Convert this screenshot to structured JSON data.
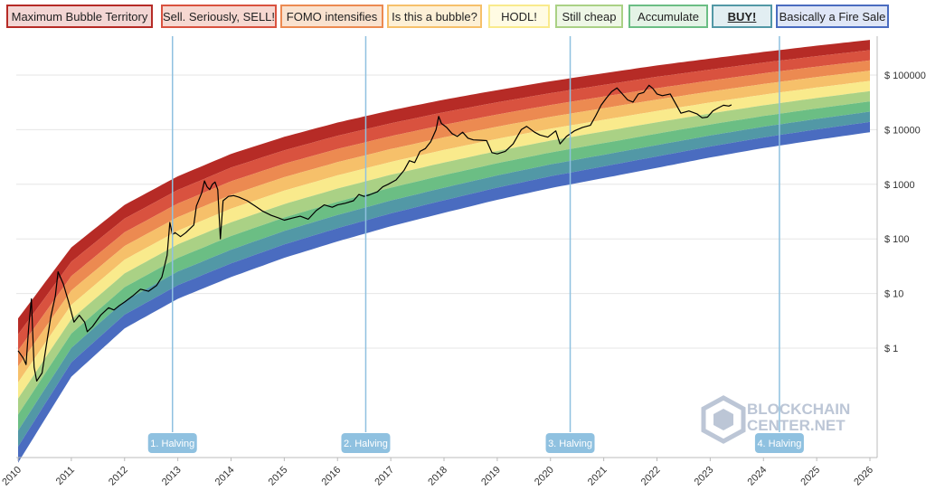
{
  "legend": [
    {
      "label": "Maximum Bubble Territory",
      "border": "#b62b26",
      "fill": "#f3d6d4"
    },
    {
      "label": "Sell. Seriously, SELL!",
      "border": "#d9523f",
      "fill": "#f6d8d1"
    },
    {
      "label": "FOMO intensifies",
      "border": "#ec8a51",
      "fill": "#f9e2cf"
    },
    {
      "label": "Is this a bubble?",
      "border": "#f6c06a",
      "fill": "#fdf0d6"
    },
    {
      "label": "HODL!",
      "border": "#f9ea8c",
      "fill": "#fffbe3"
    },
    {
      "label": "Still cheap",
      "border": "#aad185",
      "fill": "#eef7e6"
    },
    {
      "label": "Accumulate",
      "border": "#6bbe84",
      "fill": "#e4f3e6"
    },
    {
      "label": "BUY!",
      "border": "#5298a6",
      "fill": "#e2eef2",
      "bold": true
    },
    {
      "label": "Basically a Fire Sale",
      "border": "#4a6cc0",
      "fill": "#dfe6f6"
    }
  ],
  "chart_data": {
    "type": "line",
    "title": "",
    "y_scale": "log",
    "x_range": [
      2010,
      2026
    ],
    "y_ticks": [
      {
        "value": 1,
        "label": "$ 1"
      },
      {
        "value": 10,
        "label": "$ 10"
      },
      {
        "value": 100,
        "label": "$ 100"
      },
      {
        "value": 1000,
        "label": "$ 1000"
      },
      {
        "value": 10000,
        "label": "$ 10000"
      },
      {
        "value": 100000,
        "label": "$ 100000"
      }
    ],
    "x_ticks": [
      "2010",
      "2011",
      "2012",
      "2013",
      "2014",
      "2015",
      "2016",
      "2017",
      "2018",
      "2019",
      "2020",
      "2021",
      "2022",
      "2023",
      "2024",
      "2025",
      "2026"
    ],
    "band_colors": [
      "#b62b26",
      "#d9523f",
      "#ec8a51",
      "#f6c06a",
      "#f9ea8c",
      "#aad185",
      "#6bbe84",
      "#5298a6",
      "#4a6cc0"
    ],
    "bands_low": {
      "year": [
        2010,
        2011,
        2012,
        2013,
        2014,
        2015,
        2016,
        2017,
        2018,
        2019,
        2020,
        2021,
        2022,
        2023,
        2024,
        2025,
        2026
      ],
      "price": [
        0.008,
        0.3,
        2.3,
        8,
        20,
        45,
        90,
        170,
        300,
        520,
        850,
        1300,
        2000,
        3100,
        4600,
        6500,
        9000
      ]
    },
    "bands_high": {
      "year": [
        2010,
        2011,
        2012,
        2013,
        2014,
        2015,
        2016,
        2017,
        2018,
        2019,
        2020,
        2021,
        2022,
        2023,
        2024,
        2025,
        2026
      ],
      "price": [
        3.5,
        70,
        420,
        1400,
        3600,
        7400,
        13500,
        22500,
        35500,
        53000,
        77000,
        108000,
        150000,
        200000,
        265000,
        345000,
        440000
      ]
    },
    "series": [
      {
        "values": [
          [
            2010.0,
            0.9
          ],
          [
            2010.1,
            0.65
          ],
          [
            2010.15,
            0.5
          ],
          [
            2010.2,
            2.5
          ],
          [
            2010.25,
            8
          ],
          [
            2010.3,
            0.45
          ],
          [
            2010.35,
            0.25
          ],
          [
            2010.45,
            0.35
          ],
          [
            2010.55,
            1.5
          ],
          [
            2010.62,
            4
          ],
          [
            2010.7,
            9
          ],
          [
            2010.75,
            25
          ],
          [
            2010.85,
            15
          ],
          [
            2010.95,
            7
          ],
          [
            2011.05,
            3
          ],
          [
            2011.15,
            4
          ],
          [
            2011.25,
            3
          ],
          [
            2011.3,
            2
          ],
          [
            2011.4,
            2.5
          ],
          [
            2011.55,
            4
          ],
          [
            2011.7,
            5.5
          ],
          [
            2011.8,
            5
          ],
          [
            2011.9,
            6
          ],
          [
            2012.0,
            7
          ],
          [
            2012.15,
            9
          ],
          [
            2012.3,
            12
          ],
          [
            2012.45,
            11
          ],
          [
            2012.6,
            14
          ],
          [
            2012.7,
            20
          ],
          [
            2012.8,
            50
          ],
          [
            2012.85,
            200
          ],
          [
            2012.9,
            120
          ],
          [
            2012.95,
            130
          ],
          [
            2013.05,
            110
          ],
          [
            2013.15,
            130
          ],
          [
            2013.3,
            180
          ],
          [
            2013.35,
            400
          ],
          [
            2013.45,
            700
          ],
          [
            2013.5,
            1150
          ],
          [
            2013.55,
            900
          ],
          [
            2013.6,
            800
          ],
          [
            2013.65,
            1000
          ],
          [
            2013.7,
            1100
          ],
          [
            2013.75,
            800
          ],
          [
            2013.8,
            100
          ],
          [
            2013.85,
            500
          ],
          [
            2013.95,
            600
          ],
          [
            2014.05,
            620
          ],
          [
            2014.15,
            580
          ],
          [
            2014.3,
            500
          ],
          [
            2014.45,
            400
          ],
          [
            2014.6,
            320
          ],
          [
            2014.75,
            270
          ],
          [
            2014.9,
            240
          ],
          [
            2015.0,
            220
          ],
          [
            2015.15,
            240
          ],
          [
            2015.3,
            260
          ],
          [
            2015.45,
            230
          ],
          [
            2015.6,
            330
          ],
          [
            2015.75,
            420
          ],
          [
            2015.9,
            380
          ],
          [
            2016.0,
            420
          ],
          [
            2016.15,
            450
          ],
          [
            2016.3,
            500
          ],
          [
            2016.4,
            650
          ],
          [
            2016.5,
            600
          ],
          [
            2016.6,
            640
          ],
          [
            2016.75,
            730
          ],
          [
            2016.85,
            900
          ],
          [
            2016.95,
            1000
          ],
          [
            2017.1,
            1200
          ],
          [
            2017.25,
            1800
          ],
          [
            2017.35,
            2700
          ],
          [
            2017.45,
            2500
          ],
          [
            2017.55,
            4000
          ],
          [
            2017.65,
            4500
          ],
          [
            2017.75,
            6000
          ],
          [
            2017.85,
            10000
          ],
          [
            2017.9,
            17500
          ],
          [
            2017.95,
            13000
          ],
          [
            2018.05,
            11000
          ],
          [
            2018.15,
            8500
          ],
          [
            2018.25,
            7500
          ],
          [
            2018.35,
            9000
          ],
          [
            2018.45,
            7000
          ],
          [
            2018.55,
            6500
          ],
          [
            2018.7,
            6400
          ],
          [
            2018.8,
            6300
          ],
          [
            2018.9,
            3800
          ],
          [
            2019.0,
            3600
          ],
          [
            2019.15,
            4000
          ],
          [
            2019.3,
            5500
          ],
          [
            2019.45,
            10000
          ],
          [
            2019.55,
            11500
          ],
          [
            2019.7,
            9000
          ],
          [
            2019.8,
            8000
          ],
          [
            2019.95,
            7300
          ],
          [
            2020.1,
            9500
          ],
          [
            2020.18,
            5500
          ],
          [
            2020.3,
            7500
          ],
          [
            2020.45,
            9500
          ],
          [
            2020.6,
            11000
          ],
          [
            2020.75,
            12000
          ],
          [
            2020.85,
            18000
          ],
          [
            2020.95,
            28000
          ],
          [
            2021.05,
            38000
          ],
          [
            2021.15,
            50000
          ],
          [
            2021.25,
            58000
          ],
          [
            2021.35,
            45000
          ],
          [
            2021.45,
            35000
          ],
          [
            2021.55,
            32000
          ],
          [
            2021.65,
            45000
          ],
          [
            2021.75,
            48000
          ],
          [
            2021.85,
            65000
          ],
          [
            2021.92,
            57000
          ],
          [
            2022.0,
            45000
          ],
          [
            2022.1,
            42000
          ],
          [
            2022.25,
            45000
          ],
          [
            2022.35,
            30000
          ],
          [
            2022.45,
            20000
          ],
          [
            2022.6,
            22000
          ],
          [
            2022.75,
            19500
          ],
          [
            2022.85,
            16500
          ],
          [
            2022.95,
            17000
          ],
          [
            2023.05,
            22000
          ],
          [
            2023.15,
            25000
          ],
          [
            2023.25,
            28000
          ],
          [
            2023.35,
            27000
          ],
          [
            2023.4,
            28500
          ]
        ]
      }
    ],
    "halvings": [
      {
        "year": 2012.9,
        "label": "1. Halving"
      },
      {
        "year": 2016.53,
        "label": "2. Halving"
      },
      {
        "year": 2020.37,
        "label": "3. Halving"
      },
      {
        "year": 2024.3,
        "label": "4. Halving"
      }
    ]
  },
  "watermark": {
    "line1": "BLOCKCHAIN",
    "line2": "CENTER.NET"
  }
}
